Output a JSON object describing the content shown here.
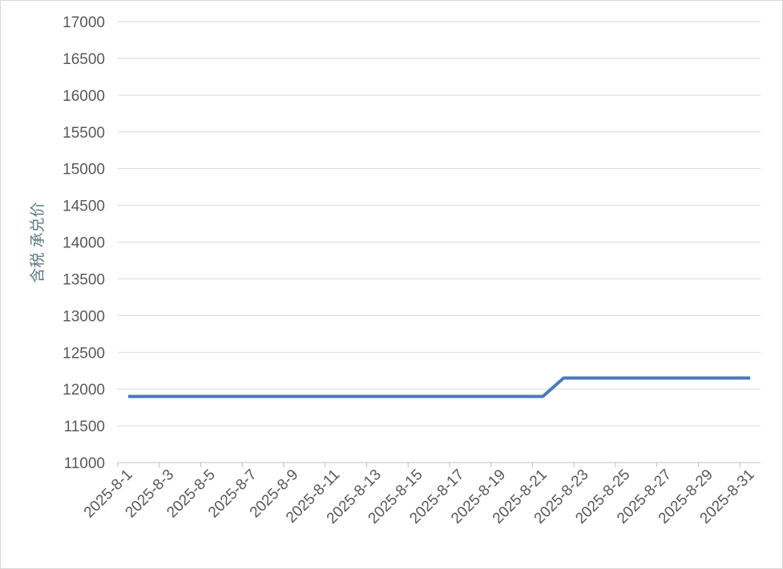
{
  "chart_data": {
    "type": "line",
    "title": "",
    "xlabel": "",
    "ylabel": "含税 承兑价",
    "ylim": [
      11000,
      17000
    ],
    "ytick_step": 500,
    "grid": true,
    "legend": "none",
    "x": [
      "2025-8-1",
      "2025-8-2",
      "2025-8-3",
      "2025-8-4",
      "2025-8-5",
      "2025-8-6",
      "2025-8-7",
      "2025-8-8",
      "2025-8-9",
      "2025-8-10",
      "2025-8-11",
      "2025-8-12",
      "2025-8-13",
      "2025-8-14",
      "2025-8-15",
      "2025-8-16",
      "2025-8-17",
      "2025-8-18",
      "2025-8-19",
      "2025-8-20",
      "2025-8-21",
      "2025-8-22",
      "2025-8-23",
      "2025-8-24",
      "2025-8-25",
      "2025-8-26",
      "2025-8-27",
      "2025-8-28",
      "2025-8-29",
      "2025-8-30",
      "2025-8-31"
    ],
    "series": [
      {
        "values": [
          11900,
          11900,
          11900,
          11900,
          11900,
          11900,
          11900,
          11900,
          11900,
          11900,
          11900,
          11900,
          11900,
          11900,
          11900,
          11900,
          11900,
          11900,
          11900,
          11900,
          11900,
          12150,
          12150,
          12150,
          12150,
          12150,
          12150,
          12150,
          12150,
          12150,
          12150
        ],
        "color": "#4a7ab8"
      }
    ],
    "colors": {
      "grid": "#d9d9d9",
      "axis": "#bfbfbf",
      "text": "#595959"
    }
  }
}
